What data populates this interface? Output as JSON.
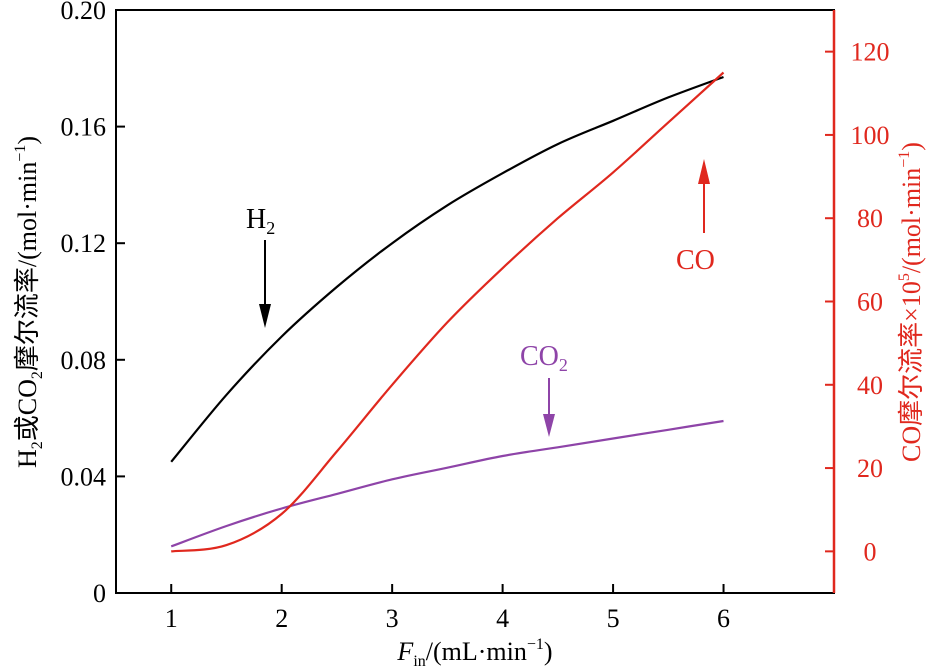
{
  "chart_data": {
    "type": "line",
    "title": "",
    "x": [
      1,
      1.5,
      2,
      2.5,
      3,
      3.5,
      4,
      4.5,
      5,
      5.5,
      6
    ],
    "xlim": [
      0.5,
      7.0
    ],
    "x_ticks": [
      "1",
      "2",
      "3",
      "4",
      "5",
      "6"
    ],
    "x_label": {
      "symbol": "F",
      "subscript": "in",
      "unit": "/(mL·min",
      "unit_exp": "−1",
      "unit_close": ")"
    },
    "y_left": {
      "ylim": [
        0,
        0.2
      ],
      "ticks": [
        "0",
        "0.04",
        "0.08",
        "0.12",
        "0.16",
        "0.20"
      ],
      "label": {
        "part1": "H",
        "sub1": "2",
        "part2": "或CO",
        "sub2": "2",
        "part3": "摩尔流率/(mol·min",
        "exp": "−1",
        "close": ")"
      }
    },
    "y_right": {
      "ylim": [
        -10,
        130
      ],
      "ticks": [
        "0",
        "20",
        "40",
        "60",
        "80",
        "100",
        "120"
      ],
      "label": {
        "part1": "CO摩尔流率×10",
        "sup1": "5",
        "part2": "/(mol·min",
        "exp": "−1",
        "close": ")"
      },
      "color": "#e0281e"
    },
    "series": [
      {
        "name": "H",
        "name_sub": "2",
        "axis": "left",
        "color": "#000000",
        "values": [
          0.045,
          0.068,
          0.088,
          0.105,
          0.12,
          0.133,
          0.144,
          0.154,
          0.162,
          0.17,
          0.177
        ]
      },
      {
        "name": "CO",
        "name_sub": "2",
        "axis": "left",
        "color": "#8e44a8",
        "values": [
          0.016,
          0.023,
          0.029,
          0.034,
          0.039,
          0.043,
          0.047,
          0.05,
          0.053,
          0.056,
          0.059
        ]
      },
      {
        "name": "CO",
        "name_sub": "",
        "axis": "right",
        "color": "#e0281e",
        "values": [
          0,
          1.5,
          9,
          24,
          40,
          55,
          68,
          80,
          91,
          103,
          115
        ]
      }
    ]
  }
}
